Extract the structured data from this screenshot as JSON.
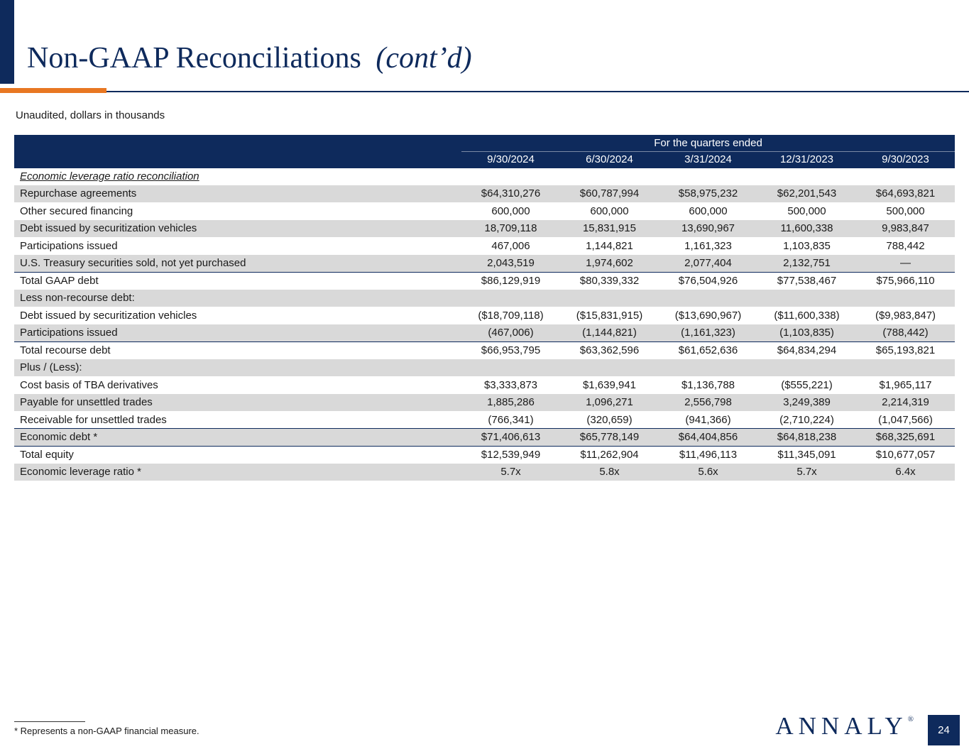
{
  "header": {
    "title": "Non-GAAP Reconciliations",
    "title_suffix": "(cont’d)",
    "subtitle": "Unaudited, dollars in thousands"
  },
  "table": {
    "header_group": "For the quarters ended",
    "columns": [
      "9/30/2024",
      "6/30/2024",
      "3/31/2024",
      "12/31/2023",
      "9/30/2023"
    ],
    "rows": [
      {
        "label": "Economic leverage ratio reconciliation",
        "values": [
          "",
          "",
          "",
          "",
          ""
        ],
        "section_title": true,
        "shaded": false
      },
      {
        "label": "Repurchase agreements",
        "values": [
          "$64,310,276",
          "$60,787,994",
          "$58,975,232",
          "$62,201,543",
          "$64,693,821"
        ],
        "shaded": true
      },
      {
        "label": "Other secured financing",
        "values": [
          "600,000",
          "600,000",
          "600,000",
          "500,000",
          "500,000"
        ],
        "shaded": false
      },
      {
        "label": "Debt issued by securitization vehicles",
        "values": [
          "18,709,118",
          "15,831,915",
          "13,690,967",
          "11,600,338",
          "9,983,847"
        ],
        "shaded": true
      },
      {
        "label": "Participations issued",
        "values": [
          "467,006",
          "1,144,821",
          "1,161,323",
          "1,103,835",
          "788,442"
        ],
        "shaded": false
      },
      {
        "label": "U.S. Treasury securities sold, not yet purchased",
        "values": [
          "2,043,519",
          "1,974,602",
          "2,077,404",
          "2,132,751",
          "—"
        ],
        "shaded": true
      },
      {
        "label": "Total GAAP debt",
        "values": [
          "$86,129,919",
          "$80,339,332",
          "$76,504,926",
          "$77,538,467",
          "$75,966,110"
        ],
        "shaded": false,
        "total": true
      },
      {
        "label": "Less non-recourse debt:",
        "values": [
          "",
          "",
          "",
          "",
          ""
        ],
        "shaded": true
      },
      {
        "label": "Debt issued by securitization vehicles",
        "values": [
          "($18,709,118)",
          "($15,831,915)",
          "($13,690,967)",
          "($11,600,338)",
          "($9,983,847)"
        ],
        "shaded": false
      },
      {
        "label": "Participations issued",
        "values": [
          "(467,006)",
          "(1,144,821)",
          "(1,161,323)",
          "(1,103,835)",
          "(788,442)"
        ],
        "shaded": true
      },
      {
        "label": "Total recourse debt",
        "values": [
          "$66,953,795",
          "$63,362,596",
          "$61,652,636",
          "$64,834,294",
          "$65,193,821"
        ],
        "shaded": false,
        "total": true
      },
      {
        "label": "Plus / (Less):",
        "values": [
          "",
          "",
          "",
          "",
          ""
        ],
        "shaded": true
      },
      {
        "label": "Cost basis of TBA derivatives",
        "values": [
          "$3,333,873",
          "$1,639,941",
          "$1,136,788",
          "($555,221)",
          "$1,965,117"
        ],
        "shaded": false
      },
      {
        "label": "Payable for unsettled trades",
        "values": [
          "1,885,286",
          "1,096,271",
          "2,556,798",
          "3,249,389",
          "2,214,319"
        ],
        "shaded": true
      },
      {
        "label": "Receivable for unsettled trades",
        "values": [
          "(766,341)",
          "(320,659)",
          "(941,366)",
          "(2,710,224)",
          "(1,047,566)"
        ],
        "shaded": false
      },
      {
        "label": "Economic debt *",
        "values": [
          "$71,406,613",
          "$65,778,149",
          "$64,404,856",
          "$64,818,238",
          "$68,325,691"
        ],
        "shaded": true,
        "total": true
      },
      {
        "label": "Total equity",
        "values": [
          "$12,539,949",
          "$11,262,904",
          "$11,496,113",
          "$11,345,091",
          "$10,677,057"
        ],
        "shaded": false,
        "total": true
      },
      {
        "label": "Economic leverage ratio *",
        "values": [
          "5.7x",
          "5.8x",
          "5.6x",
          "5.7x",
          "6.4x"
        ],
        "shaded": true
      }
    ]
  },
  "footer": {
    "footnote": "* Represents a non-GAAP financial measure.",
    "logo": "ANNALY",
    "logo_mark": "®",
    "page_number": "24"
  },
  "colors": {
    "navy": "#0e2a5c",
    "orange": "#e87722",
    "row_shade": "#d9d9d9"
  }
}
